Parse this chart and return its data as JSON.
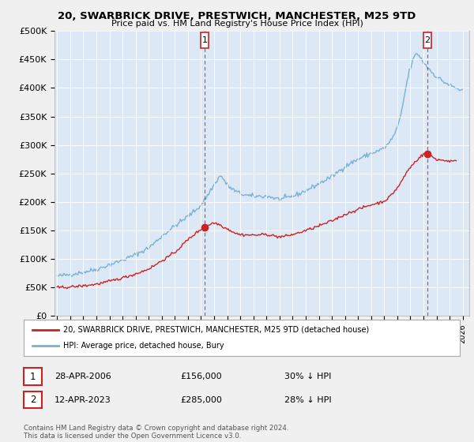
{
  "title": "20, SWARBRICK DRIVE, PRESTWICH, MANCHESTER, M25 9TD",
  "subtitle": "Price paid vs. HM Land Registry's House Price Index (HPI)",
  "hpi_color": "#7ab0d4",
  "price_color": "#cc2222",
  "background_color": "#f0f0f0",
  "plot_bg_color": "#dce8f5",
  "grid_color": "#ffffff",
  "ylim": [
    0,
    500000
  ],
  "yticks": [
    0,
    50000,
    100000,
    150000,
    200000,
    250000,
    300000,
    350000,
    400000,
    450000,
    500000
  ],
  "ytick_labels": [
    "£0",
    "£50K",
    "£100K",
    "£150K",
    "£200K",
    "£250K",
    "£300K",
    "£350K",
    "£400K",
    "£450K",
    "£500K"
  ],
  "xtick_years": [
    1995,
    1996,
    1997,
    1998,
    1999,
    2000,
    2001,
    2002,
    2003,
    2004,
    2005,
    2006,
    2007,
    2008,
    2009,
    2010,
    2011,
    2012,
    2013,
    2014,
    2015,
    2016,
    2017,
    2018,
    2019,
    2020,
    2021,
    2022,
    2023,
    2024,
    2025,
    2026
  ],
  "marker1_x": 2006.3,
  "marker1_y": 156000,
  "marker1_label": "1",
  "marker1_date": "28-APR-2006",
  "marker1_price": "£156,000",
  "marker1_hpi": "30% ↓ HPI",
  "marker2_x": 2023.28,
  "marker2_y": 285000,
  "marker2_label": "2",
  "marker2_date": "12-APR-2023",
  "marker2_price": "£285,000",
  "marker2_hpi": "28% ↓ HPI",
  "legend_price_label": "20, SWARBRICK DRIVE, PRESTWICH, MANCHESTER, M25 9TD (detached house)",
  "legend_hpi_label": "HPI: Average price, detached house, Bury",
  "footer": "Contains HM Land Registry data © Crown copyright and database right 2024.\nThis data is licensed under the Open Government Licence v3.0."
}
